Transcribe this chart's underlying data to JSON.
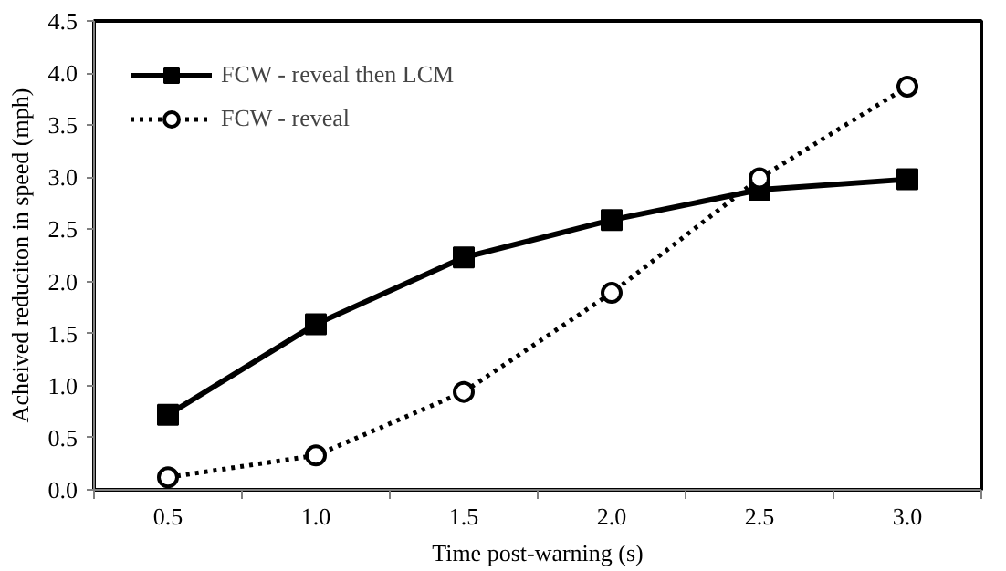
{
  "chart_data": {
    "type": "line",
    "xlabel": "Time post-warning (s)",
    "ylabel": "Acheived reduciton in speed (mph)",
    "categories": [
      "0.5",
      "1.0",
      "1.5",
      "2.0",
      "2.5",
      "3.0"
    ],
    "series": [
      {
        "name": "FCW - reveal then LCM",
        "color": "#000000",
        "marker": "square",
        "line_style": "solid",
        "values": [
          0.72,
          1.59,
          2.23,
          2.59,
          2.88,
          2.98
        ]
      },
      {
        "name": "FCW - reveal",
        "color": "#000000",
        "marker": "circle",
        "line_style": "dotted",
        "values": [
          0.12,
          0.33,
          0.94,
          1.89,
          2.99,
          3.87
        ]
      }
    ],
    "ylim": [
      0,
      4.5
    ],
    "yticks": [
      {
        "value": 0,
        "label": "0.0"
      },
      0.5,
      {
        "value": 1,
        "label": "1.0"
      },
      1.5,
      {
        "value": 2,
        "label": "2.0"
      },
      2.5,
      {
        "value": 3,
        "label": "3.0"
      },
      3.5,
      {
        "value": 4,
        "label": "4.0"
      },
      4.5
    ],
    "grid": false,
    "legend": "top left"
  }
}
